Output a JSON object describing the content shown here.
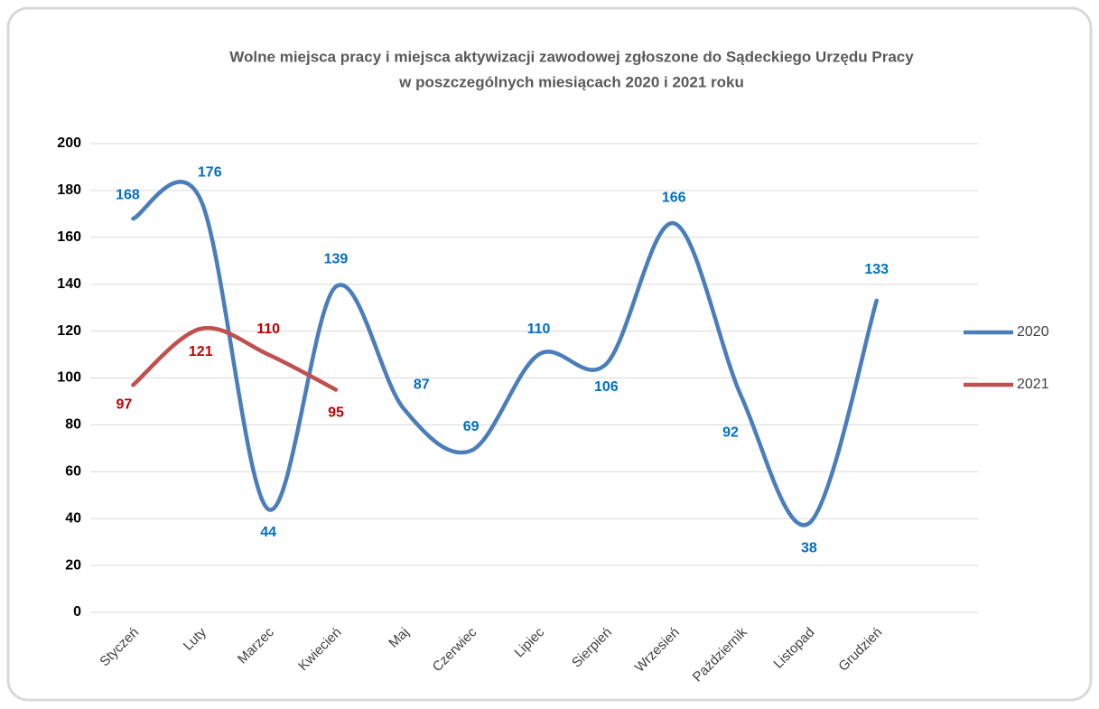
{
  "chart_data": {
    "type": "line",
    "title": [
      "Wolne miejsca pracy i miejsca aktywizacji zawodowej zgłoszone do Sądeckiego Urzędu Pracy",
      "w poszczególnych miesiącach 2020 i  2021 roku"
    ],
    "categories": [
      "Styczeń",
      "Luty",
      "Marzec",
      "Kwiecień",
      "Maj",
      "Czerwiec",
      "Lipiec",
      "Sierpień",
      "Wrzesień",
      "Październik",
      "Listopad",
      "Grudzień"
    ],
    "series": [
      {
        "name": "2020",
        "color": "#4a7ebb",
        "label_color": "#0070c0",
        "values": [
          168,
          176,
          44,
          139,
          87,
          69,
          110,
          106,
          166,
          92,
          38,
          133
        ]
      },
      {
        "name": "2021",
        "color": "#c0504d",
        "label_color": "#c00000",
        "values": [
          97,
          121,
          110,
          95,
          null,
          null,
          null,
          null,
          null,
          null,
          null,
          null
        ]
      }
    ],
    "ylim": [
      0,
      200
    ],
    "yticks": [
      0,
      20,
      40,
      60,
      80,
      100,
      120,
      140,
      160,
      180,
      200
    ],
    "grid": true,
    "legend": "right",
    "smooth": true
  }
}
